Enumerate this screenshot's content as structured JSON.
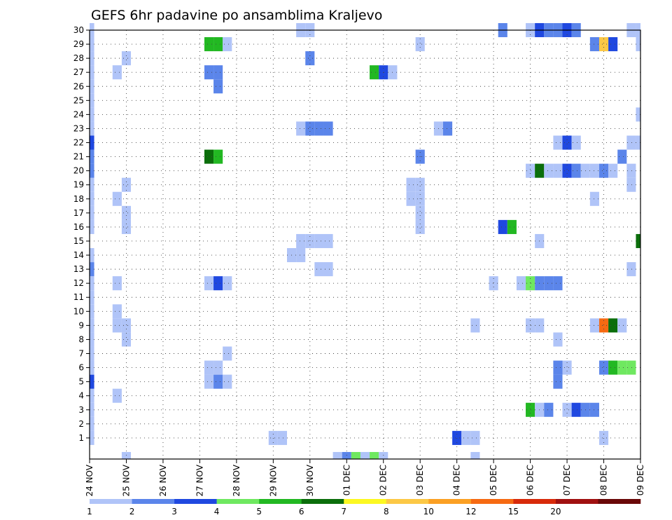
{
  "chart_data": {
    "type": "heatmap",
    "title": "GEFS 6hr padavine po ansamblima Kraljevo",
    "xlabel": "",
    "ylabel": "",
    "x_ticks": [
      "24 NOV",
      "25 NOV",
      "26 NOV",
      "27 NOV",
      "28 NOV",
      "29 NOV",
      "30 NOV",
      "01 DEC",
      "02 DEC",
      "03 DEC",
      "04 DEC",
      "05 DEC",
      "06 DEC",
      "07 DEC",
      "08 DEC",
      "09 DEC"
    ],
    "y_ticks": [
      "1",
      "2",
      "3",
      "4",
      "5",
      "6",
      "7",
      "8",
      "9",
      "10",
      "11",
      "12",
      "13",
      "14",
      "15",
      "16",
      "17",
      "18",
      "19",
      "20",
      "21",
      "22",
      "23",
      "24",
      "25",
      "26",
      "27",
      "28",
      "29",
      "30"
    ],
    "x_step": "6h",
    "n_steps": 60,
    "grid": true,
    "colorbar": {
      "labels": [
        "1",
        "2",
        "3",
        "4",
        "5",
        "6",
        "7",
        "8",
        "10",
        "12",
        "15",
        "20"
      ],
      "colors": [
        "#b0c4f8",
        "#5b85ea",
        "#1f48e0",
        "#6fe860",
        "#22b822",
        "#0b6e0b",
        "#fcf822",
        "#fcc846",
        "#fba024",
        "#f66a12",
        "#d82a0a",
        "#a01010",
        "#6a0808"
      ]
    },
    "cells": [
      {
        "m": 1,
        "t": 0,
        "v": 1
      },
      {
        "m": 1,
        "t": 20,
        "v": 1
      },
      {
        "m": 1,
        "t": 21,
        "v": 1
      },
      {
        "m": 1,
        "t": 40,
        "v": 3
      },
      {
        "m": 1,
        "t": 41,
        "v": 1
      },
      {
        "m": 1,
        "t": 42,
        "v": 1
      },
      {
        "m": 1,
        "t": 56,
        "v": 1
      },
      {
        "m": 2,
        "t": 0,
        "v": 1
      },
      {
        "m": 3,
        "t": 0,
        "v": 1
      },
      {
        "m": 3,
        "t": 48,
        "v": 5
      },
      {
        "m": 3,
        "t": 49,
        "v": 1
      },
      {
        "m": 3,
        "t": 50,
        "v": 2
      },
      {
        "m": 3,
        "t": 52,
        "v": 1
      },
      {
        "m": 3,
        "t": 53,
        "v": 3
      },
      {
        "m": 3,
        "t": 54,
        "v": 2
      },
      {
        "m": 3,
        "t": 55,
        "v": 2
      },
      {
        "m": 4,
        "t": 0,
        "v": 1
      },
      {
        "m": 4,
        "t": 3,
        "v": 1
      },
      {
        "m": 5,
        "t": 0,
        "v": 3
      },
      {
        "m": 5,
        "t": 13,
        "v": 1
      },
      {
        "m": 5,
        "t": 14,
        "v": 2
      },
      {
        "m": 5,
        "t": 15,
        "v": 1
      },
      {
        "m": 5,
        "t": 51,
        "v": 2
      },
      {
        "m": 6,
        "t": 0,
        "v": 1
      },
      {
        "m": 6,
        "t": 13,
        "v": 1
      },
      {
        "m": 6,
        "t": 14,
        "v": 1
      },
      {
        "m": 6,
        "t": 51,
        "v": 2
      },
      {
        "m": 6,
        "t": 52,
        "v": 1
      },
      {
        "m": 6,
        "t": 56,
        "v": 2
      },
      {
        "m": 6,
        "t": 57,
        "v": 5
      },
      {
        "m": 6,
        "t": 58,
        "v": 4
      },
      {
        "m": 6,
        "t": 59,
        "v": 4
      },
      {
        "m": 7,
        "t": 0,
        "v": 1
      },
      {
        "m": 7,
        "t": 15,
        "v": 1
      },
      {
        "m": 8,
        "t": 0,
        "v": 1
      },
      {
        "m": 8,
        "t": 4,
        "v": 1
      },
      {
        "m": 8,
        "t": 51,
        "v": 1
      },
      {
        "m": 9,
        "t": 0,
        "v": 1
      },
      {
        "m": 9,
        "t": 3,
        "v": 1
      },
      {
        "m": 9,
        "t": 4,
        "v": 1
      },
      {
        "m": 9,
        "t": 42,
        "v": 1
      },
      {
        "m": 9,
        "t": 48,
        "v": 1
      },
      {
        "m": 9,
        "t": 49,
        "v": 1
      },
      {
        "m": 9,
        "t": 55,
        "v": 1
      },
      {
        "m": 9,
        "t": 56,
        "v": 10
      },
      {
        "m": 9,
        "t": 57,
        "v": 6
      },
      {
        "m": 9,
        "t": 58,
        "v": 1
      },
      {
        "m": 10,
        "t": 0,
        "v": 1
      },
      {
        "m": 10,
        "t": 3,
        "v": 1
      },
      {
        "m": 11,
        "t": 0,
        "v": 1
      },
      {
        "m": 12,
        "t": 0,
        "v": 1
      },
      {
        "m": 12,
        "t": 3,
        "v": 1
      },
      {
        "m": 12,
        "t": 13,
        "v": 1
      },
      {
        "m": 12,
        "t": 14,
        "v": 3
      },
      {
        "m": 12,
        "t": 15,
        "v": 1
      },
      {
        "m": 12,
        "t": 44,
        "v": 1
      },
      {
        "m": 12,
        "t": 47,
        "v": 1
      },
      {
        "m": 12,
        "t": 48,
        "v": 4
      },
      {
        "m": 12,
        "t": 49,
        "v": 2
      },
      {
        "m": 12,
        "t": 50,
        "v": 2
      },
      {
        "m": 12,
        "t": 51,
        "v": 2
      },
      {
        "m": 13,
        "t": 0,
        "v": 2
      },
      {
        "m": 13,
        "t": 25,
        "v": 1
      },
      {
        "m": 13,
        "t": 26,
        "v": 1
      },
      {
        "m": 13,
        "t": 59,
        "v": 1
      },
      {
        "m": 14,
        "t": 0,
        "v": 1
      },
      {
        "m": 14,
        "t": 22,
        "v": 1
      },
      {
        "m": 14,
        "t": 23,
        "v": 1
      },
      {
        "m": 15,
        "t": 23,
        "v": 1
      },
      {
        "m": 15,
        "t": 24,
        "v": 1
      },
      {
        "m": 15,
        "t": 25,
        "v": 1
      },
      {
        "m": 15,
        "t": 26,
        "v": 1
      },
      {
        "m": 15,
        "t": 49,
        "v": 1
      },
      {
        "m": 15,
        "t": 60,
        "v": 6
      },
      {
        "m": 16,
        "t": 0,
        "v": 1
      },
      {
        "m": 16,
        "t": 4,
        "v": 1
      },
      {
        "m": 16,
        "t": 36,
        "v": 1
      },
      {
        "m": 16,
        "t": 45,
        "v": 3
      },
      {
        "m": 16,
        "t": 46,
        "v": 5
      },
      {
        "m": 17,
        "t": 0,
        "v": 1
      },
      {
        "m": 17,
        "t": 4,
        "v": 1
      },
      {
        "m": 17,
        "t": 36,
        "v": 1
      },
      {
        "m": 18,
        "t": 0,
        "v": 1
      },
      {
        "m": 18,
        "t": 3,
        "v": 1
      },
      {
        "m": 18,
        "t": 35,
        "v": 1
      },
      {
        "m": 18,
        "t": 36,
        "v": 1
      },
      {
        "m": 18,
        "t": 55,
        "v": 1
      },
      {
        "m": 19,
        "t": 0,
        "v": 1
      },
      {
        "m": 19,
        "t": 4,
        "v": 1
      },
      {
        "m": 19,
        "t": 35,
        "v": 1
      },
      {
        "m": 19,
        "t": 36,
        "v": 1
      },
      {
        "m": 19,
        "t": 59,
        "v": 1
      },
      {
        "m": 20,
        "t": 0,
        "v": 2
      },
      {
        "m": 20,
        "t": 48,
        "v": 1
      },
      {
        "m": 20,
        "t": 49,
        "v": 6
      },
      {
        "m": 20,
        "t": 50,
        "v": 1
      },
      {
        "m": 20,
        "t": 51,
        "v": 1
      },
      {
        "m": 20,
        "t": 52,
        "v": 3
      },
      {
        "m": 20,
        "t": 53,
        "v": 2
      },
      {
        "m": 20,
        "t": 54,
        "v": 1
      },
      {
        "m": 20,
        "t": 55,
        "v": 1
      },
      {
        "m": 20,
        "t": 56,
        "v": 2
      },
      {
        "m": 20,
        "t": 57,
        "v": 1
      },
      {
        "m": 20,
        "t": 59,
        "v": 1
      },
      {
        "m": 21,
        "t": 0,
        "v": 2
      },
      {
        "m": 21,
        "t": 13,
        "v": 6
      },
      {
        "m": 21,
        "t": 14,
        "v": 5
      },
      {
        "m": 21,
        "t": 36,
        "v": 2
      },
      {
        "m": 21,
        "t": 58,
        "v": 2
      },
      {
        "m": 22,
        "t": 0,
        "v": 3
      },
      {
        "m": 22,
        "t": 51,
        "v": 1
      },
      {
        "m": 22,
        "t": 52,
        "v": 3
      },
      {
        "m": 22,
        "t": 53,
        "v": 1
      },
      {
        "m": 22,
        "t": 59,
        "v": 1
      },
      {
        "m": 22,
        "t": 60,
        "v": 1
      },
      {
        "m": 23,
        "t": 0,
        "v": 1
      },
      {
        "m": 23,
        "t": 23,
        "v": 1
      },
      {
        "m": 23,
        "t": 24,
        "v": 2
      },
      {
        "m": 23,
        "t": 25,
        "v": 2
      },
      {
        "m": 23,
        "t": 26,
        "v": 2
      },
      {
        "m": 23,
        "t": 38,
        "v": 1
      },
      {
        "m": 23,
        "t": 39,
        "v": 2
      },
      {
        "m": 24,
        "t": 0,
        "v": 1
      },
      {
        "m": 24,
        "t": 60,
        "v": 1
      },
      {
        "m": 25,
        "t": 0,
        "v": 1
      },
      {
        "m": 26,
        "t": 0,
        "v": 1
      },
      {
        "m": 26,
        "t": 14,
        "v": 2
      },
      {
        "m": 27,
        "t": 0,
        "v": 1
      },
      {
        "m": 27,
        "t": 3,
        "v": 1
      },
      {
        "m": 27,
        "t": 13,
        "v": 2
      },
      {
        "m": 27,
        "t": 14,
        "v": 2
      },
      {
        "m": 27,
        "t": 31,
        "v": 5
      },
      {
        "m": 27,
        "t": 32,
        "v": 3
      },
      {
        "m": 27,
        "t": 33,
        "v": 1
      },
      {
        "m": 28,
        "t": 0,
        "v": 1
      },
      {
        "m": 28,
        "t": 4,
        "v": 1
      },
      {
        "m": 28,
        "t": 24,
        "v": 2
      },
      {
        "m": 29,
        "t": 0,
        "v": 1
      },
      {
        "m": 29,
        "t": 13,
        "v": 5
      },
      {
        "m": 29,
        "t": 14,
        "v": 5
      },
      {
        "m": 29,
        "t": 15,
        "v": 1
      },
      {
        "m": 29,
        "t": 36,
        "v": 1
      },
      {
        "m": 29,
        "t": 55,
        "v": 2
      },
      {
        "m": 29,
        "t": 56,
        "v": 8
      },
      {
        "m": 29,
        "t": 57,
        "v": 3
      },
      {
        "m": 29,
        "t": 60,
        "v": 1
      },
      {
        "m": 30,
        "t": 0,
        "v": 1
      },
      {
        "m": 30,
        "t": 23,
        "v": 1
      },
      {
        "m": 30,
        "t": 24,
        "v": 1
      },
      {
        "m": 30,
        "t": 45,
        "v": 2
      },
      {
        "m": 30,
        "t": 48,
        "v": 1
      },
      {
        "m": 30,
        "t": 49,
        "v": 3
      },
      {
        "m": 30,
        "t": 50,
        "v": 2
      },
      {
        "m": 30,
        "t": 51,
        "v": 2
      },
      {
        "m": 30,
        "t": 52,
        "v": 3
      },
      {
        "m": 30,
        "t": 53,
        "v": 2
      },
      {
        "m": 30,
        "t": 59,
        "v": 1
      },
      {
        "m": 30,
        "t": 60,
        "v": 1
      },
      {
        "m": 0,
        "t": 4,
        "v": 1
      },
      {
        "m": 0,
        "t": 27,
        "v": 1
      },
      {
        "m": 0,
        "t": 28,
        "v": 2
      },
      {
        "m": 0,
        "t": 29,
        "v": 4
      },
      {
        "m": 0,
        "t": 30,
        "v": 1
      },
      {
        "m": 0,
        "t": 31,
        "v": 4
      },
      {
        "m": 0,
        "t": 32,
        "v": 1
      },
      {
        "m": 0,
        "t": 42,
        "v": 1
      }
    ]
  }
}
